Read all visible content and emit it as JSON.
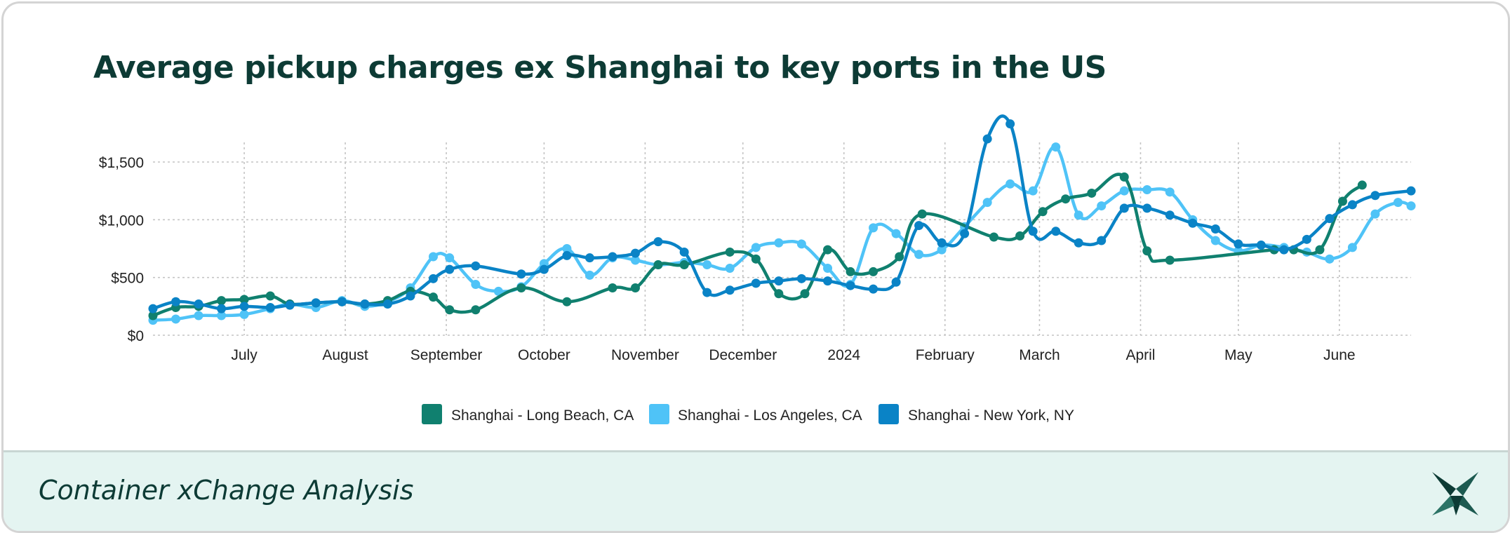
{
  "title": "Average pickup charges ex Shanghai to key ports in the US",
  "footer": {
    "text": "Container xChange Analysis",
    "logo_icon": "xchange-star-logo"
  },
  "chart_data": {
    "type": "line",
    "title": "Average pickup charges ex Shanghai to key ports in the US",
    "xlabel": "",
    "ylabel": "",
    "x_range": [
      "2023-06-03",
      "2024-06-23"
    ],
    "ylim": [
      0,
      1800
    ],
    "y_ticks": [
      0,
      500,
      1000,
      1500
    ],
    "y_tick_labels": [
      "$0",
      "$500",
      "$1,000",
      "$1,500"
    ],
    "x_ticks": [
      "2023-07-01",
      "2023-08-01",
      "2023-09-01",
      "2023-10-01",
      "2023-11-01",
      "2023-12-01",
      "2024-01-01",
      "2024-02-01",
      "2024-03-01",
      "2024-04-01",
      "2024-05-01",
      "2024-06-01"
    ],
    "x_tick_labels": [
      "July",
      "August",
      "September",
      "October",
      "November",
      "December",
      "2024",
      "February",
      "March",
      "April",
      "May",
      "June"
    ],
    "grid": true,
    "legend_position": "bottom-center",
    "colors": {
      "long_beach": "#10806f",
      "los_angeles": "#4fc3f7",
      "new_york": "#0a83c6",
      "grid": "#c4c4c4",
      "axis_text": "#222222"
    },
    "series": [
      {
        "name": "Shanghai - Long Beach, CA",
        "color": "#10806f",
        "points": [
          [
            "2023-06-03",
            170
          ],
          [
            "2023-06-10",
            240
          ],
          [
            "2023-06-17",
            250
          ],
          [
            "2023-06-24",
            300
          ],
          [
            "2023-07-01",
            310
          ],
          [
            "2023-07-09",
            340
          ],
          [
            "2023-07-15",
            270
          ],
          [
            "2023-07-23",
            280
          ],
          [
            "2023-07-31",
            290
          ],
          [
            "2023-08-07",
            270
          ],
          [
            "2023-08-14",
            300
          ],
          [
            "2023-08-21",
            380
          ],
          [
            "2023-08-28",
            330
          ],
          [
            "2023-09-02",
            220
          ],
          [
            "2023-09-10",
            220
          ],
          [
            "2023-09-24",
            410
          ],
          [
            "2023-10-08",
            290
          ],
          [
            "2023-10-22",
            410
          ],
          [
            "2023-10-29",
            410
          ],
          [
            "2023-11-05",
            610
          ],
          [
            "2023-11-13",
            610
          ],
          [
            "2023-11-27",
            720
          ],
          [
            "2023-12-05",
            660
          ],
          [
            "2023-12-12",
            360
          ],
          [
            "2023-12-20",
            360
          ],
          [
            "2023-12-27",
            740
          ],
          [
            "2024-01-03",
            550
          ],
          [
            "2024-01-10",
            550
          ],
          [
            "2024-01-18",
            680
          ],
          [
            "2024-01-25",
            1050
          ],
          [
            "2024-02-16",
            850
          ],
          [
            "2024-02-24",
            860
          ],
          [
            "2024-03-02",
            1070
          ],
          [
            "2024-03-09",
            1180
          ],
          [
            "2024-03-17",
            1230
          ],
          [
            "2024-03-27",
            1370
          ],
          [
            "2024-04-03",
            730
          ],
          [
            "2024-04-10",
            650
          ],
          [
            "2024-05-12",
            740
          ],
          [
            "2024-05-18",
            740
          ],
          [
            "2024-05-26",
            740
          ],
          [
            "2024-06-02",
            1160
          ],
          [
            "2024-06-08",
            1300
          ]
        ]
      },
      {
        "name": "Shanghai - Los Angeles, CA",
        "color": "#4fc3f7",
        "points": [
          [
            "2023-06-03",
            130
          ],
          [
            "2023-06-10",
            140
          ],
          [
            "2023-06-17",
            170
          ],
          [
            "2023-06-24",
            170
          ],
          [
            "2023-07-01",
            180
          ],
          [
            "2023-07-09",
            230
          ],
          [
            "2023-07-15",
            270
          ],
          [
            "2023-07-23",
            240
          ],
          [
            "2023-07-31",
            300
          ],
          [
            "2023-08-07",
            250
          ],
          [
            "2023-08-14",
            290
          ],
          [
            "2023-08-21",
            410
          ],
          [
            "2023-08-28",
            680
          ],
          [
            "2023-09-02",
            670
          ],
          [
            "2023-09-10",
            440
          ],
          [
            "2023-09-17",
            380
          ],
          [
            "2023-09-24",
            420
          ],
          [
            "2023-10-01",
            620
          ],
          [
            "2023-10-08",
            750
          ],
          [
            "2023-10-15",
            520
          ],
          [
            "2023-10-22",
            670
          ],
          [
            "2023-10-29",
            650
          ],
          [
            "2023-11-05",
            610
          ],
          [
            "2023-11-13",
            630
          ],
          [
            "2023-11-20",
            610
          ],
          [
            "2023-11-27",
            580
          ],
          [
            "2023-12-05",
            760
          ],
          [
            "2023-12-12",
            800
          ],
          [
            "2023-12-19",
            790
          ],
          [
            "2023-12-27",
            580
          ],
          [
            "2024-01-03",
            440
          ],
          [
            "2024-01-10",
            930
          ],
          [
            "2024-01-17",
            880
          ],
          [
            "2024-01-24",
            700
          ],
          [
            "2024-01-31",
            740
          ],
          [
            "2024-02-07",
            940
          ],
          [
            "2024-02-14",
            1150
          ],
          [
            "2024-02-21",
            1310
          ],
          [
            "2024-02-28",
            1250
          ],
          [
            "2024-03-06",
            1630
          ],
          [
            "2024-03-13",
            1040
          ],
          [
            "2024-03-20",
            1120
          ],
          [
            "2024-03-27",
            1250
          ],
          [
            "2024-04-03",
            1260
          ],
          [
            "2024-04-10",
            1240
          ],
          [
            "2024-04-17",
            1000
          ],
          [
            "2024-04-24",
            820
          ],
          [
            "2024-05-01",
            730
          ],
          [
            "2024-05-08",
            780
          ],
          [
            "2024-05-15",
            760
          ],
          [
            "2024-05-22",
            720
          ],
          [
            "2024-05-29",
            660
          ],
          [
            "2024-06-05",
            760
          ],
          [
            "2024-06-12",
            1050
          ],
          [
            "2024-06-19",
            1150
          ],
          [
            "2024-06-23",
            1120
          ]
        ]
      },
      {
        "name": "Shanghai - New York, NY",
        "color": "#0a83c6",
        "points": [
          [
            "2023-06-03",
            230
          ],
          [
            "2023-06-10",
            290
          ],
          [
            "2023-06-17",
            270
          ],
          [
            "2023-06-24",
            230
          ],
          [
            "2023-07-01",
            250
          ],
          [
            "2023-07-09",
            240
          ],
          [
            "2023-07-15",
            260
          ],
          [
            "2023-07-23",
            280
          ],
          [
            "2023-07-31",
            290
          ],
          [
            "2023-08-07",
            270
          ],
          [
            "2023-08-14",
            270
          ],
          [
            "2023-08-21",
            340
          ],
          [
            "2023-08-28",
            490
          ],
          [
            "2023-09-02",
            570
          ],
          [
            "2023-09-10",
            600
          ],
          [
            "2023-09-24",
            530
          ],
          [
            "2023-10-01",
            570
          ],
          [
            "2023-10-08",
            690
          ],
          [
            "2023-10-15",
            670
          ],
          [
            "2023-10-22",
            680
          ],
          [
            "2023-10-29",
            710
          ],
          [
            "2023-11-05",
            810
          ],
          [
            "2023-11-13",
            720
          ],
          [
            "2023-11-20",
            370
          ],
          [
            "2023-11-27",
            390
          ],
          [
            "2023-12-05",
            450
          ],
          [
            "2023-12-12",
            470
          ],
          [
            "2023-12-19",
            490
          ],
          [
            "2023-12-27",
            470
          ],
          [
            "2024-01-03",
            430
          ],
          [
            "2024-01-10",
            400
          ],
          [
            "2024-01-17",
            460
          ],
          [
            "2024-01-24",
            950
          ],
          [
            "2024-01-31",
            800
          ],
          [
            "2024-02-07",
            880
          ],
          [
            "2024-02-14",
            1700
          ],
          [
            "2024-02-21",
            1830
          ],
          [
            "2024-02-28",
            900
          ],
          [
            "2024-03-06",
            900
          ],
          [
            "2024-03-13",
            800
          ],
          [
            "2024-03-20",
            820
          ],
          [
            "2024-03-27",
            1100
          ],
          [
            "2024-04-03",
            1100
          ],
          [
            "2024-04-10",
            1040
          ],
          [
            "2024-04-17",
            970
          ],
          [
            "2024-04-24",
            920
          ],
          [
            "2024-05-01",
            790
          ],
          [
            "2024-05-08",
            780
          ],
          [
            "2024-05-15",
            740
          ],
          [
            "2024-05-22",
            830
          ],
          [
            "2024-05-29",
            1010
          ],
          [
            "2024-06-05",
            1130
          ],
          [
            "2024-06-12",
            1210
          ],
          [
            "2024-06-23",
            1250
          ]
        ]
      }
    ]
  }
}
